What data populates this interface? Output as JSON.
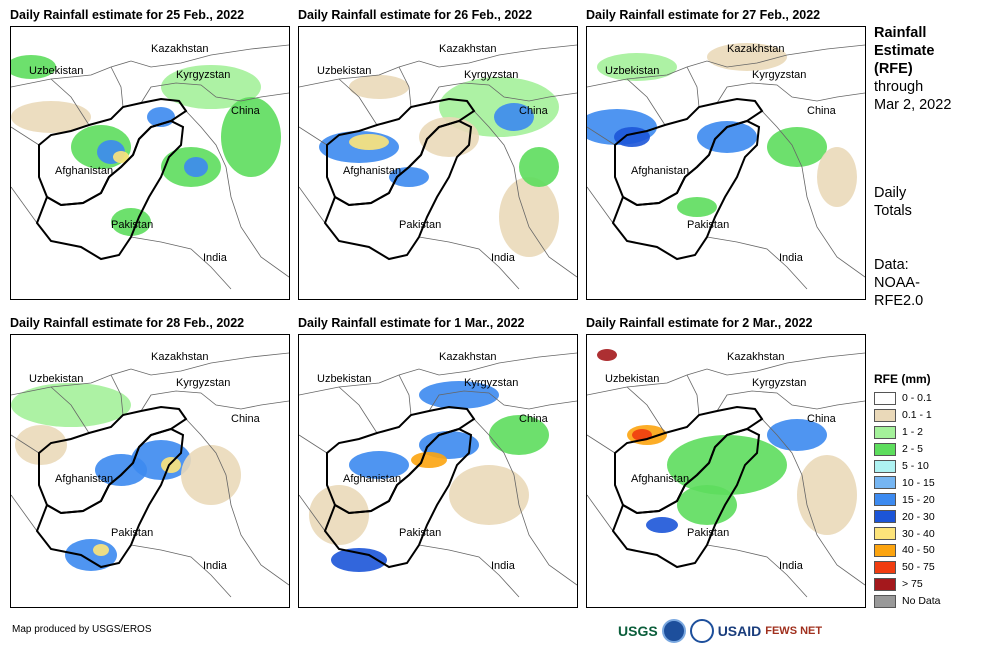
{
  "panels": [
    {
      "title": "Daily Rainfall estimate for 25 Feb., 2022"
    },
    {
      "title": "Daily Rainfall estimate for 26 Feb., 2022"
    },
    {
      "title": "Daily Rainfall estimate for 27 Feb., 2022"
    },
    {
      "title": "Daily Rainfall estimate for 28 Feb., 2022"
    },
    {
      "title": "Daily Rainfall estimate for 1 Mar., 2022"
    },
    {
      "title": "Daily Rainfall estimate for 2 Mar., 2022"
    }
  ],
  "countries": {
    "kazakhstan": "Kazakhstan",
    "uzbekistan": "Uzbekistan",
    "kyrgyzstan": "Kyrgyzstan",
    "china": "China",
    "afghanistan": "Afghanistan",
    "pakistan": "Pakistan",
    "india": "India"
  },
  "sidebar": {
    "title_lines": [
      "Rainfall",
      "Estimate",
      "(RFE)"
    ],
    "subtitle_lines": [
      "through",
      "Mar 2, 2022"
    ],
    "daily_lines": [
      "Daily",
      "Totals"
    ],
    "data_lines": [
      "Data:",
      "NOAA-",
      "RFE2.0"
    ]
  },
  "legend": {
    "title": "RFE (mm)",
    "items": [
      {
        "label": "0 - 0.1",
        "color": "#ffffff"
      },
      {
        "label": "0.1 - 1",
        "color": "#ead9b9"
      },
      {
        "label": "1 - 2",
        "color": "#a4f19a"
      },
      {
        "label": "2 - 5",
        "color": "#5ddd5d"
      },
      {
        "label": "5 - 10",
        "color": "#aef2f2"
      },
      {
        "label": "10 - 15",
        "color": "#75b5f2"
      },
      {
        "label": "15 - 20",
        "color": "#3c8af0"
      },
      {
        "label": "20 - 30",
        "color": "#1c55d8"
      },
      {
        "label": "30 - 40",
        "color": "#fde47a"
      },
      {
        "label": "40 - 50",
        "color": "#fca40f"
      },
      {
        "label": "50 - 75",
        "color": "#f03c10"
      },
      {
        "label": "> 75",
        "color": "#a4181c"
      },
      {
        "label": "No Data",
        "color": "#999999"
      }
    ]
  },
  "footer": {
    "credit": "Map produced by USGS/EROS",
    "logos": [
      "USGS",
      "NOAA",
      "HHS",
      "USAID",
      "FEWS NET"
    ]
  }
}
